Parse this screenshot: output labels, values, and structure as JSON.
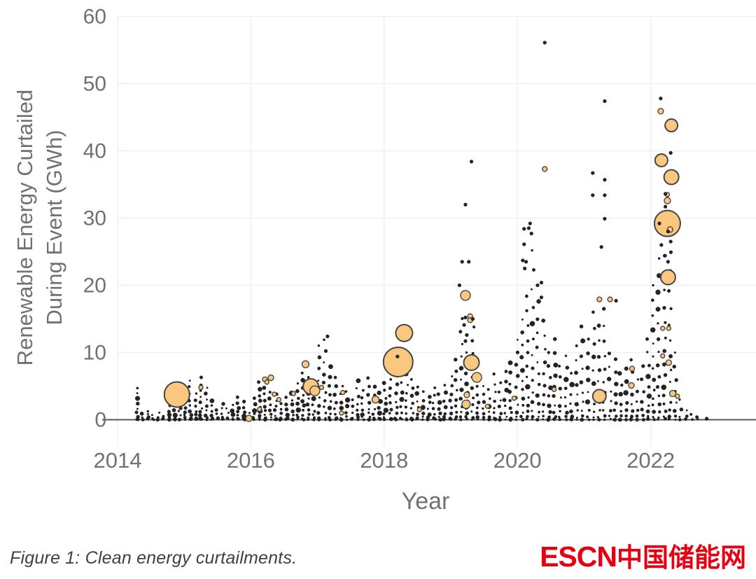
{
  "figure": {
    "caption": "Figure 1: Clean energy curtailments."
  },
  "branding": {
    "logo_text_en": "ESCN",
    "logo_text_zh": "中国储能网",
    "logo_color": "#e60012"
  },
  "chart_data": {
    "type": "scatter",
    "title": "",
    "xlabel": "Year",
    "ylabel_lines": [
      "Renewable Energy Curtailed",
      "During Event (GWh)"
    ],
    "x_ticks": [
      2014,
      2016,
      2018,
      2020,
      2022
    ],
    "y_ticks": [
      0,
      10,
      20,
      30,
      40,
      50,
      60
    ],
    "xlim": [
      2013.8,
      2023.2
    ],
    "ylim": [
      0,
      60
    ],
    "grid": true,
    "legend": "none",
    "colors": {
      "bubble_fill": "#f9c87e",
      "bubble_stroke": "#454545",
      "dot_fill": "#242424",
      "grid": "#ededed",
      "axis_line": "#57595b",
      "tick_text": "#6e7276",
      "title_text": "#6e7276"
    },
    "series": [
      {
        "name": "curtailment-event-columns",
        "format": "[year, top_gwh, count]",
        "columns": [
          [
            2014.29,
            4.8,
            9
          ],
          [
            2014.37,
            1.0,
            3
          ],
          [
            2014.45,
            1.4,
            4
          ],
          [
            2014.53,
            0.7,
            3
          ],
          [
            2014.61,
            1.2,
            3
          ],
          [
            2014.69,
            0.5,
            2
          ],
          [
            2014.77,
            2.9,
            6
          ],
          [
            2014.85,
            2.2,
            5
          ],
          [
            2014.93,
            3.4,
            7
          ],
          [
            2015.01,
            4.5,
            8
          ],
          [
            2015.09,
            5.9,
            9
          ],
          [
            2015.17,
            3.9,
            7
          ],
          [
            2015.25,
            6.3,
            10
          ],
          [
            2015.33,
            4.9,
            8
          ],
          [
            2015.41,
            2.9,
            6
          ],
          [
            2015.49,
            1.5,
            4
          ],
          [
            2015.57,
            2.5,
            5
          ],
          [
            2015.65,
            1.8,
            4
          ],
          [
            2015.73,
            2.2,
            5
          ],
          [
            2015.81,
            3.4,
            7
          ],
          [
            2015.89,
            2.7,
            6
          ],
          [
            2015.97,
            1.0,
            3
          ],
          [
            2016.05,
            3.2,
            6
          ],
          [
            2016.13,
            5.6,
            9
          ],
          [
            2016.21,
            5.9,
            9
          ],
          [
            2016.29,
            4.1,
            7
          ],
          [
            2016.37,
            3.8,
            7
          ],
          [
            2016.45,
            2.4,
            5
          ],
          [
            2016.54,
            3.4,
            6
          ],
          [
            2016.62,
            4.0,
            7
          ],
          [
            2016.7,
            5.4,
            8
          ],
          [
            2016.78,
            7.0,
            10
          ],
          [
            2016.86,
            6.4,
            9
          ],
          [
            2016.94,
            5.2,
            8
          ],
          [
            2017.03,
            11.1,
            10
          ],
          [
            2017.11,
            11.9,
            11
          ],
          [
            2017.19,
            7.9,
            9
          ],
          [
            2017.27,
            6.4,
            8
          ],
          [
            2017.36,
            5.0,
            7
          ],
          [
            2017.44,
            4.2,
            6
          ],
          [
            2017.52,
            3.0,
            5
          ],
          [
            2017.6,
            5.8,
            8
          ],
          [
            2017.68,
            4.4,
            7
          ],
          [
            2017.77,
            6.2,
            8
          ],
          [
            2017.85,
            5.0,
            7
          ],
          [
            2017.93,
            4.0,
            6
          ],
          [
            2018.01,
            5.5,
            8
          ],
          [
            2018.1,
            7.4,
            9
          ],
          [
            2018.18,
            8.0,
            9
          ],
          [
            2018.26,
            7.0,
            8
          ],
          [
            2018.34,
            8.3,
            9
          ],
          [
            2018.42,
            6.0,
            8
          ],
          [
            2018.5,
            5.0,
            7
          ],
          [
            2018.59,
            4.2,
            6
          ],
          [
            2018.67,
            3.5,
            6
          ],
          [
            2018.75,
            4.8,
            7
          ],
          [
            2018.83,
            3.8,
            6
          ],
          [
            2018.91,
            5.2,
            7
          ],
          [
            2019.0,
            6.5,
            8
          ],
          [
            2019.08,
            9.0,
            9
          ],
          [
            2019.16,
            15.2,
            12
          ],
          [
            2019.24,
            10.0,
            10
          ],
          [
            2019.33,
            13.8,
            11
          ],
          [
            2019.41,
            6.2,
            8
          ],
          [
            2019.49,
            5.0,
            7
          ],
          [
            2019.57,
            4.5,
            6
          ],
          [
            2019.66,
            6.8,
            8
          ],
          [
            2019.74,
            5.5,
            7
          ],
          [
            2019.82,
            7.2,
            8
          ],
          [
            2019.9,
            8.5,
            9
          ],
          [
            2019.99,
            12.0,
            10
          ],
          [
            2020.07,
            15.0,
            12
          ],
          [
            2020.15,
            18.5,
            13
          ],
          [
            2020.23,
            25.2,
            14
          ],
          [
            2020.31,
            20.0,
            13
          ],
          [
            2020.4,
            14.8,
            11
          ],
          [
            2020.48,
            10.0,
            9
          ],
          [
            2020.56,
            12.0,
            10
          ],
          [
            2020.64,
            8.0,
            8
          ],
          [
            2020.73,
            9.5,
            9
          ],
          [
            2020.81,
            7.0,
            7
          ],
          [
            2020.89,
            11.0,
            9
          ],
          [
            2020.97,
            14.0,
            10
          ],
          [
            2021.06,
            12.0,
            9
          ],
          [
            2021.14,
            16.0,
            11
          ],
          [
            2021.22,
            14.0,
            10
          ],
          [
            2021.3,
            16.5,
            11
          ],
          [
            2021.39,
            10.0,
            8
          ],
          [
            2021.47,
            9.0,
            8
          ],
          [
            2021.55,
            7.0,
            7
          ],
          [
            2021.63,
            7.6,
            7
          ],
          [
            2021.72,
            9.0,
            8
          ],
          [
            2021.8,
            6.0,
            6
          ],
          [
            2021.88,
            8.0,
            7
          ],
          [
            2021.96,
            12.0,
            10
          ],
          [
            2022.04,
            20.0,
            14
          ],
          [
            2022.12,
            24.0,
            15
          ],
          [
            2022.21,
            24.4,
            15
          ],
          [
            2022.29,
            25.0,
            14
          ],
          [
            2022.37,
            10.0,
            8
          ],
          [
            2022.45,
            3.0,
            4
          ],
          [
            2022.53,
            1.5,
            3
          ],
          [
            2022.62,
            0.8,
            2
          ],
          [
            2022.7,
            0.4,
            2
          ]
        ]
      },
      {
        "name": "curtailment-outlier-events",
        "format": "[year, gwh]",
        "points": [
          [
            2020.41,
            56.1
          ],
          [
            2022.15,
            47.8
          ],
          [
            2021.31,
            47.4
          ],
          [
            2019.31,
            38.4
          ],
          [
            2019.22,
            32.0
          ],
          [
            2021.13,
            36.7
          ],
          [
            2021.31,
            35.7
          ],
          [
            2021.13,
            33.4
          ],
          [
            2021.31,
            33.4
          ],
          [
            2021.31,
            29.9
          ],
          [
            2021.26,
            25.7
          ],
          [
            2020.1,
            28.4
          ],
          [
            2020.1,
            26.1
          ],
          [
            2020.19,
            29.2
          ],
          [
            2020.17,
            28.5
          ],
          [
            2020.21,
            27.7
          ],
          [
            2020.08,
            23.7
          ],
          [
            2020.13,
            23.5
          ],
          [
            2020.11,
            22.5
          ],
          [
            2019.17,
            23.5
          ],
          [
            2019.27,
            23.5
          ],
          [
            2019.13,
            20.0
          ],
          [
            2022.3,
            39.7
          ],
          [
            2022.22,
            33.6
          ],
          [
            2022.22,
            31.7
          ],
          [
            2022.13,
            29.2
          ],
          [
            2022.3,
            26.5
          ],
          [
            2022.16,
            26.0
          ],
          [
            2022.21,
            24.4
          ],
          [
            2022.26,
            23.5
          ],
          [
            2017.15,
            12.4
          ],
          [
            2020.36,
            20.4
          ],
          [
            2020.36,
            18.2
          ],
          [
            2022.84,
            0.15
          ],
          [
            2019.22,
            15.2
          ],
          [
            2019.2,
            14.1
          ],
          [
            2019.24,
            12.6
          ],
          [
            2019.22,
            11.7
          ],
          [
            2019.33,
            15.0
          ],
          [
            2018.2,
            9.4
          ],
          [
            2021.48,
            17.7
          ],
          [
            2022.26,
            28.0
          ]
        ]
      },
      {
        "name": "highlighted-curtailment-bubbles",
        "format": "[year, gwh, radius_px]",
        "points": [
          [
            2014.89,
            3.75,
            18
          ],
          [
            2015.97,
            0.2,
            4.5
          ],
          [
            2015.25,
            4.8,
            3
          ],
          [
            2016.13,
            1.56,
            3
          ],
          [
            2016.21,
            6.0,
            3.5
          ],
          [
            2016.3,
            6.25,
            4
          ],
          [
            2016.24,
            5.6,
            3
          ],
          [
            2016.35,
            3.8,
            3
          ],
          [
            2016.42,
            3.0,
            3
          ],
          [
            2016.64,
            3.9,
            3
          ],
          [
            2016.82,
            8.25,
            5
          ],
          [
            2016.9,
            4.95,
            11
          ],
          [
            2016.96,
            4.3,
            7
          ],
          [
            2017.06,
            4.8,
            3
          ],
          [
            2017.36,
            1.0,
            3
          ],
          [
            2017.38,
            4.05,
            3
          ],
          [
            2017.87,
            3.0,
            5
          ],
          [
            2018.21,
            8.6,
            21
          ],
          [
            2018.3,
            12.9,
            12
          ],
          [
            2018.53,
            1.5,
            3
          ],
          [
            2019.22,
            18.5,
            7
          ],
          [
            2019.29,
            15.4,
            3.5
          ],
          [
            2019.29,
            14.8,
            3.5
          ],
          [
            2019.31,
            8.5,
            11
          ],
          [
            2019.39,
            6.3,
            7
          ],
          [
            2019.24,
            3.7,
            4
          ],
          [
            2019.23,
            2.3,
            6
          ],
          [
            2019.55,
            2.0,
            3
          ],
          [
            2019.95,
            3.2,
            3
          ],
          [
            2020.41,
            37.3,
            3.5
          ],
          [
            2020.55,
            4.5,
            3
          ],
          [
            2021.23,
            17.9,
            3.5
          ],
          [
            2021.39,
            17.9,
            3.5
          ],
          [
            2021.23,
            3.5,
            9.5
          ],
          [
            2021.72,
            7.6,
            3.5
          ],
          [
            2021.71,
            5.1,
            4
          ],
          [
            2022.15,
            45.9,
            4
          ],
          [
            2022.31,
            43.8,
            9
          ],
          [
            2022.16,
            38.6,
            9
          ],
          [
            2022.31,
            36.1,
            10.5
          ],
          [
            2022.25,
            33.5,
            3
          ],
          [
            2022.25,
            32.6,
            4.5
          ],
          [
            2022.25,
            29.2,
            18.5
          ],
          [
            2022.29,
            28.3,
            4
          ],
          [
            2022.26,
            21.2,
            10.5
          ],
          [
            2022.18,
            13.6,
            3
          ],
          [
            2022.27,
            13.6,
            3
          ],
          [
            2022.18,
            9.5,
            3
          ],
          [
            2022.27,
            8.5,
            4
          ],
          [
            2022.33,
            3.9,
            4.5
          ],
          [
            2022.4,
            3.5,
            3
          ]
        ]
      }
    ]
  }
}
